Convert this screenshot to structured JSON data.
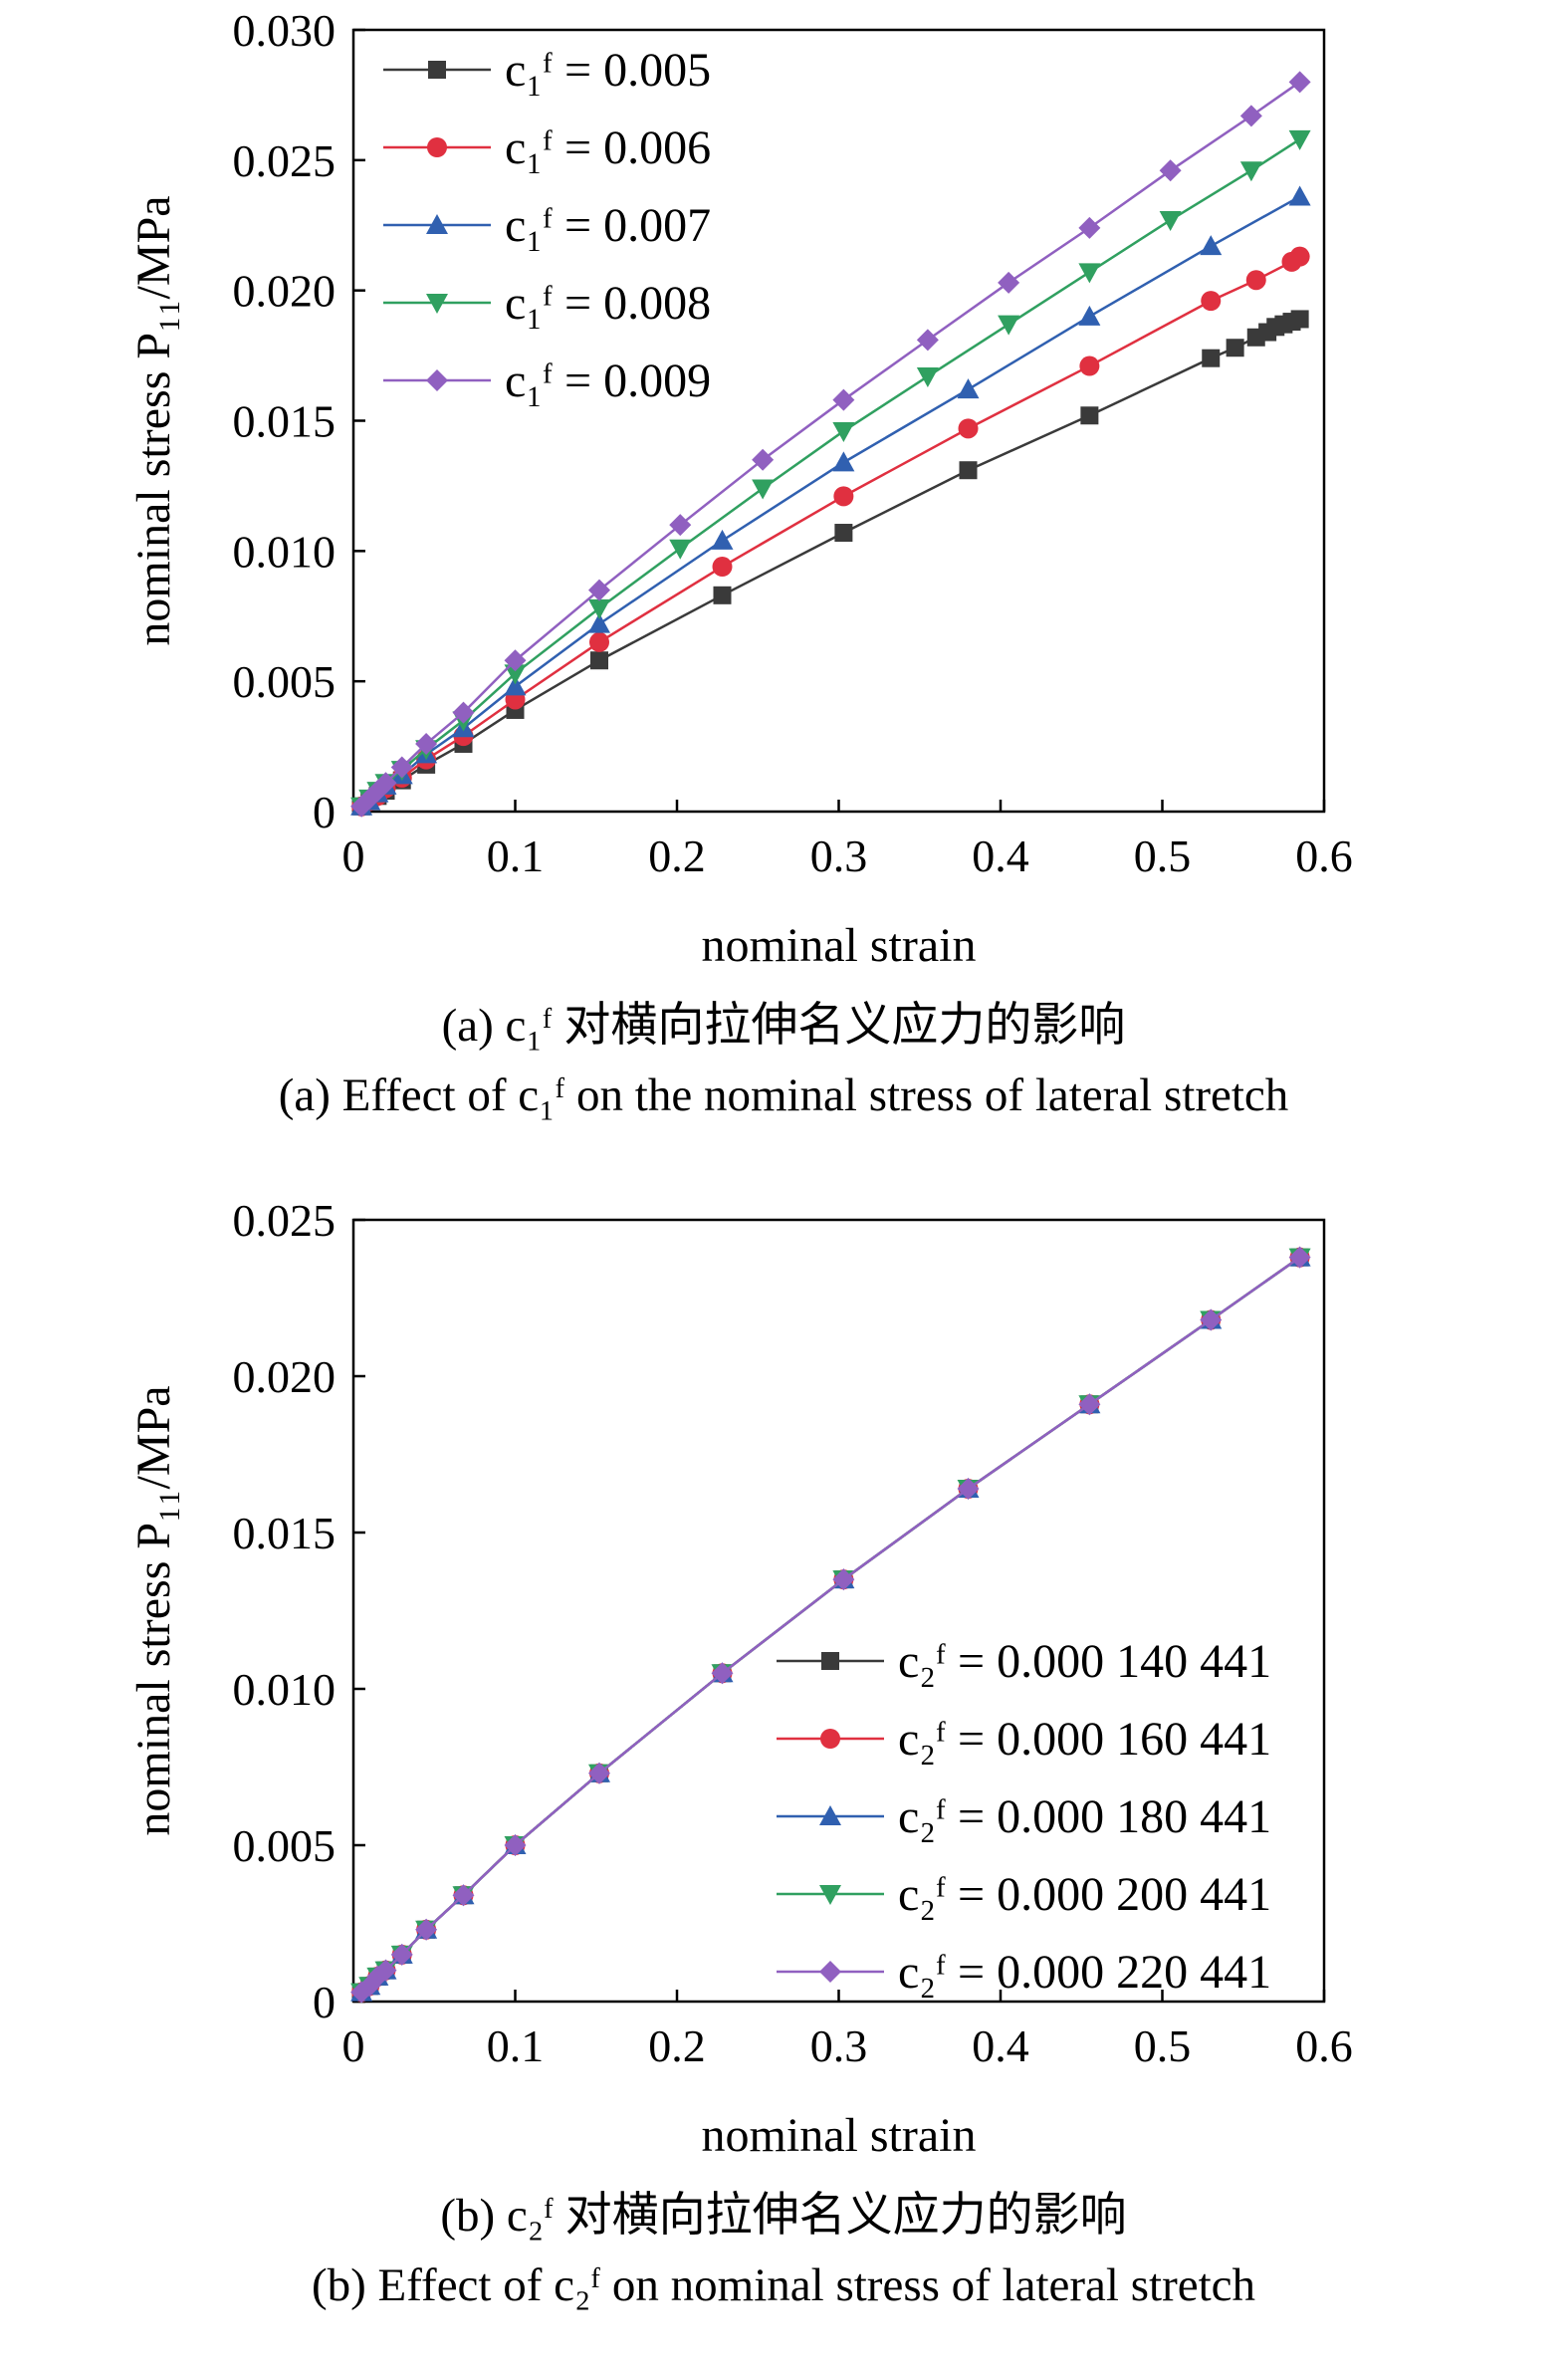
{
  "chart_data": [
    {
      "type": "line",
      "xlabel": "nominal strain",
      "ylabel": "nominal stress P₁₁/MPa",
      "xlim": [
        0,
        0.6
      ],
      "ylim": [
        0,
        0.03
      ],
      "xticks": [
        "0",
        "0.1",
        "0.2",
        "0.3",
        "0.4",
        "0.5",
        "0.6"
      ],
      "yticks": [
        "0",
        "0.005",
        "0.010",
        "0.015",
        "0.020",
        "0.025",
        "0.030"
      ],
      "legend_position": "top-left",
      "caption_cn": "(a) c₁ᶠ 对横向拉伸名义应力的影响",
      "caption_en": "(a) Effect of c₁ᶠ on the nominal stress of lateral stretch",
      "series": [
        {
          "name": "c₁ᶠ = 0.005",
          "color": "#3a3a3a",
          "marker": "square",
          "x": [
            0.005,
            0.01,
            0.015,
            0.02,
            0.03,
            0.045,
            0.068,
            0.1,
            0.152,
            0.228,
            0.303,
            0.38,
            0.455,
            0.53,
            0.545,
            0.558,
            0.565,
            0.57,
            0.575,
            0.58,
            0.585
          ],
          "y": [
            0.0002,
            0.0004,
            0.0006,
            0.0008,
            0.0012,
            0.0018,
            0.0026,
            0.0039,
            0.0058,
            0.0083,
            0.0107,
            0.0131,
            0.0152,
            0.0174,
            0.0178,
            0.0182,
            0.0184,
            0.0186,
            0.0187,
            0.0188,
            0.0189
          ]
        },
        {
          "name": "c₁ᶠ = 0.006",
          "color": "#e03040",
          "marker": "circle",
          "x": [
            0.005,
            0.01,
            0.015,
            0.02,
            0.03,
            0.045,
            0.068,
            0.1,
            0.152,
            0.228,
            0.303,
            0.38,
            0.455,
            0.53,
            0.558,
            0.58,
            0.585
          ],
          "y": [
            0.0002,
            0.0004,
            0.0006,
            0.0009,
            0.0013,
            0.002,
            0.0029,
            0.0043,
            0.0065,
            0.0094,
            0.0121,
            0.0147,
            0.0171,
            0.0196,
            0.0204,
            0.0211,
            0.0213
          ]
        },
        {
          "name": "c₁ᶠ = 0.007",
          "color": "#3060b0",
          "marker": "triangle-up",
          "x": [
            0.005,
            0.01,
            0.015,
            0.02,
            0.03,
            0.045,
            0.068,
            0.1,
            0.152,
            0.228,
            0.303,
            0.38,
            0.455,
            0.53,
            0.585
          ],
          "y": [
            0.0002,
            0.0004,
            0.0007,
            0.001,
            0.0014,
            0.0022,
            0.0032,
            0.0048,
            0.0072,
            0.0104,
            0.0134,
            0.0162,
            0.019,
            0.0217,
            0.0236
          ]
        },
        {
          "name": "c₁ᶠ = 0.008",
          "color": "#30a060",
          "marker": "triangle-down",
          "x": [
            0.005,
            0.01,
            0.015,
            0.02,
            0.03,
            0.045,
            0.068,
            0.1,
            0.152,
            0.202,
            0.253,
            0.303,
            0.355,
            0.405,
            0.455,
            0.505,
            0.555,
            0.585
          ],
          "y": [
            0.0002,
            0.0005,
            0.0008,
            0.0011,
            0.0016,
            0.0024,
            0.0035,
            0.0053,
            0.0078,
            0.0101,
            0.0124,
            0.0146,
            0.0167,
            0.0187,
            0.0207,
            0.0227,
            0.0246,
            0.0258
          ]
        },
        {
          "name": "c₁ᶠ = 0.009",
          "color": "#9060c0",
          "marker": "diamond",
          "x": [
            0.005,
            0.01,
            0.015,
            0.02,
            0.03,
            0.045,
            0.068,
            0.1,
            0.152,
            0.202,
            0.253,
            0.303,
            0.355,
            0.405,
            0.455,
            0.505,
            0.555,
            0.585
          ],
          "y": [
            0.0002,
            0.0005,
            0.0008,
            0.0011,
            0.0017,
            0.0026,
            0.0038,
            0.0058,
            0.0085,
            0.011,
            0.0135,
            0.0158,
            0.0181,
            0.0203,
            0.0224,
            0.0246,
            0.0267,
            0.028
          ]
        }
      ]
    },
    {
      "type": "line",
      "xlabel": "nominal strain",
      "ylabel": "nominal stress P₁₁/MPa",
      "xlim": [
        0,
        0.6
      ],
      "ylim": [
        0,
        0.025
      ],
      "xticks": [
        "0",
        "0.1",
        "0.2",
        "0.3",
        "0.4",
        "0.5",
        "0.6"
      ],
      "yticks": [
        "0",
        "0.005",
        "0.010",
        "0.015",
        "0.020",
        "0.025"
      ],
      "legend_position": "bottom-right",
      "caption_cn": "(b) c₂ᶠ 对横向拉伸名义应力的影响",
      "caption_en": "(b) Effect of c₂ᶠ on nominal stress of lateral stretch",
      "series": [
        {
          "name": "c₂ᶠ = 0.000 140 441",
          "color": "#3a3a3a",
          "marker": "square",
          "x": [
            0.005,
            0.01,
            0.015,
            0.02,
            0.03,
            0.045,
            0.068,
            0.1,
            0.152,
            0.228,
            0.303,
            0.38,
            0.455,
            0.53,
            0.585
          ],
          "y": [
            0.0003,
            0.0005,
            0.0008,
            0.001,
            0.0015,
            0.0023,
            0.0034,
            0.005,
            0.0073,
            0.0105,
            0.0135,
            0.0164,
            0.0191,
            0.0218,
            0.0238
          ]
        },
        {
          "name": "c₂ᶠ = 0.000 160 441",
          "color": "#e03040",
          "marker": "circle",
          "x": [
            0.005,
            0.01,
            0.015,
            0.02,
            0.03,
            0.045,
            0.068,
            0.1,
            0.152,
            0.228,
            0.303,
            0.38,
            0.455,
            0.53,
            0.585
          ],
          "y": [
            0.0003,
            0.0005,
            0.0008,
            0.001,
            0.0015,
            0.0023,
            0.0034,
            0.005,
            0.0073,
            0.0105,
            0.0135,
            0.0164,
            0.0191,
            0.0218,
            0.0238
          ]
        },
        {
          "name": "c₂ᶠ = 0.000 180 441",
          "color": "#3060b0",
          "marker": "triangle-up",
          "x": [
            0.005,
            0.01,
            0.015,
            0.02,
            0.03,
            0.045,
            0.068,
            0.1,
            0.152,
            0.228,
            0.303,
            0.38,
            0.455,
            0.53,
            0.585
          ],
          "y": [
            0.0003,
            0.0005,
            0.0008,
            0.001,
            0.0015,
            0.0023,
            0.0034,
            0.005,
            0.0073,
            0.0105,
            0.0135,
            0.0164,
            0.0191,
            0.0218,
            0.0238
          ]
        },
        {
          "name": "c₂ᶠ = 0.000 200 441",
          "color": "#30a060",
          "marker": "triangle-down",
          "x": [
            0.005,
            0.01,
            0.015,
            0.02,
            0.03,
            0.045,
            0.068,
            0.1,
            0.152,
            0.228,
            0.303,
            0.38,
            0.455,
            0.53,
            0.585
          ],
          "y": [
            0.0003,
            0.0005,
            0.0008,
            0.001,
            0.0015,
            0.0023,
            0.0034,
            0.005,
            0.0073,
            0.0105,
            0.0135,
            0.0164,
            0.0191,
            0.0218,
            0.0238
          ]
        },
        {
          "name": "c₂ᶠ = 0.000 220 441",
          "color": "#9060c0",
          "marker": "diamond",
          "x": [
            0.005,
            0.01,
            0.015,
            0.02,
            0.03,
            0.045,
            0.068,
            0.1,
            0.152,
            0.228,
            0.303,
            0.38,
            0.455,
            0.53,
            0.585
          ],
          "y": [
            0.0003,
            0.0005,
            0.0008,
            0.001,
            0.0015,
            0.0023,
            0.0034,
            0.005,
            0.0073,
            0.0105,
            0.0135,
            0.0164,
            0.0191,
            0.0218,
            0.0238
          ]
        }
      ]
    }
  ]
}
